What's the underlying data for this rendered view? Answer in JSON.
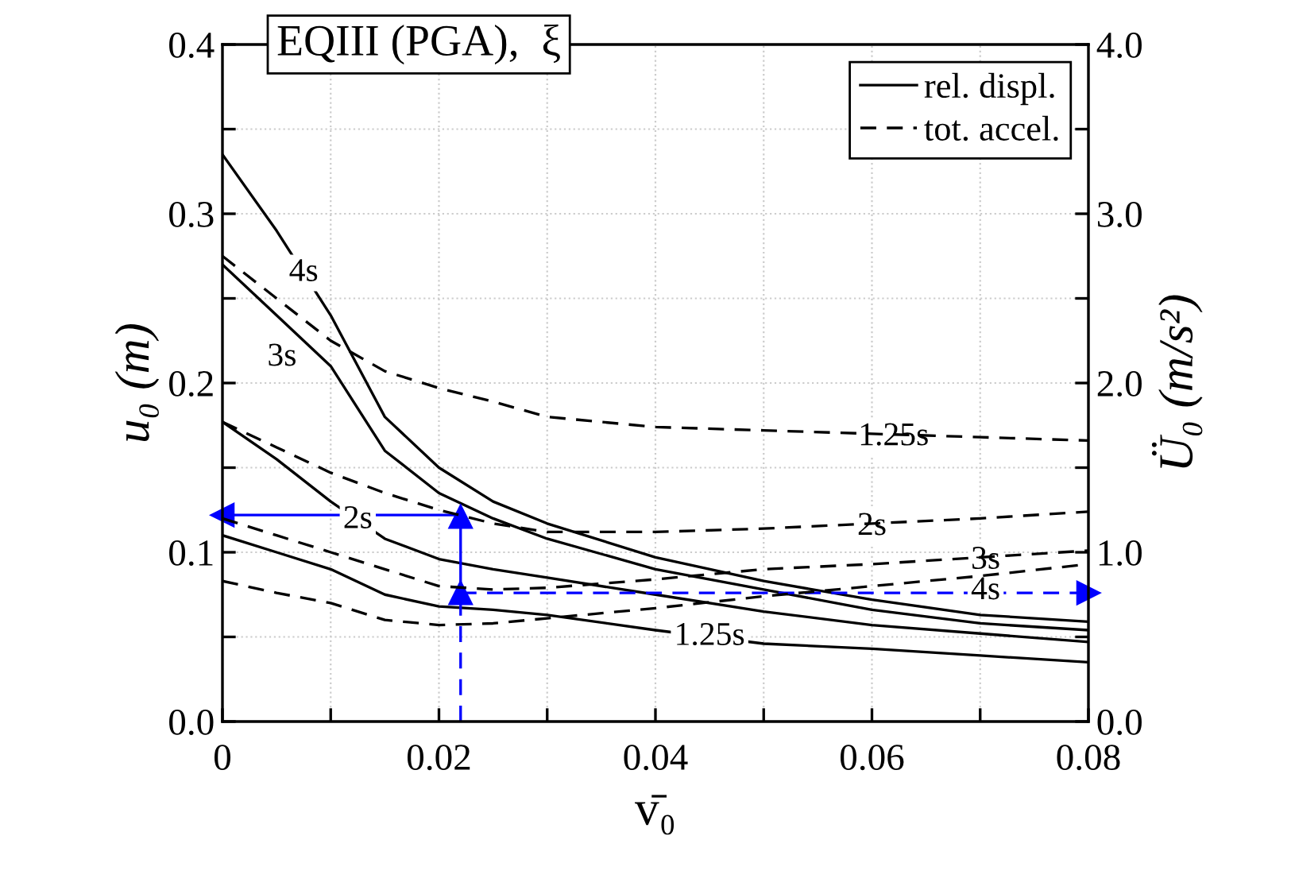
{
  "chart_data": {
    "type": "line",
    "title": "EQIII (PGA),  ξ",
    "xlabel": "v̄₀",
    "ylabel": "u₀ (m)",
    "y2label": "Ü₀ (m/s²)",
    "xlim": [
      0,
      0.08
    ],
    "ylim": [
      0,
      0.4
    ],
    "y2lim": [
      0,
      4.0
    ],
    "xticks": [
      {
        "value": 0,
        "label": "0"
      },
      {
        "value": 0.01,
        "label": null
      },
      {
        "value": 0.02,
        "label": "0.02"
      },
      {
        "value": 0.03,
        "label": null
      },
      {
        "value": 0.04,
        "label": "0.04"
      },
      {
        "value": 0.05,
        "label": null
      },
      {
        "value": 0.06,
        "label": "0.06"
      },
      {
        "value": 0.07,
        "label": null
      },
      {
        "value": 0.08,
        "label": "0.08"
      }
    ],
    "yticks": [
      {
        "value": 0,
        "label": "0.0"
      },
      {
        "value": 0.05,
        "label": null
      },
      {
        "value": 0.1,
        "label": "0.1"
      },
      {
        "value": 0.15,
        "label": null
      },
      {
        "value": 0.2,
        "label": "0.2"
      },
      {
        "value": 0.25,
        "label": null
      },
      {
        "value": 0.3,
        "label": "0.3"
      },
      {
        "value": 0.35,
        "label": null
      },
      {
        "value": 0.4,
        "label": "0.4"
      }
    ],
    "y2ticks": [
      {
        "value": 0,
        "label": "0.0"
      },
      {
        "value": 0.5,
        "label": null
      },
      {
        "value": 1.0,
        "label": "1.0"
      },
      {
        "value": 1.5,
        "label": null
      },
      {
        "value": 2.0,
        "label": "2.0"
      },
      {
        "value": 2.5,
        "label": null
      },
      {
        "value": 3.0,
        "label": "3.0"
      },
      {
        "value": 3.5,
        "label": null
      },
      {
        "value": 4.0,
        "label": "4.0"
      }
    ],
    "grid": true,
    "marker": "none",
    "x": [
      0,
      0.005,
      0.01,
      0.015,
      0.02,
      0.025,
      0.03,
      0.04,
      0.05,
      0.06,
      0.07,
      0.08
    ],
    "series": [
      {
        "color": "#000000",
        "line_style": "solid",
        "axis": "y",
        "values": [
          0.335,
          0.29,
          0.24,
          0.18,
          0.15,
          0.13,
          0.117,
          0.097,
          0.083,
          0.072,
          0.063,
          0.059
        ]
      },
      {
        "color": "#000000",
        "line_style": "solid",
        "axis": "y",
        "values": [
          0.27,
          0.24,
          0.21,
          0.16,
          0.135,
          0.12,
          0.108,
          0.09,
          0.078,
          0.066,
          0.058,
          0.054
        ]
      },
      {
        "color": "#000000",
        "line_style": "solid",
        "axis": "y",
        "values": [
          0.177,
          0.155,
          0.13,
          0.108,
          0.096,
          0.09,
          0.085,
          0.075,
          0.065,
          0.057,
          0.052,
          0.047
        ]
      },
      {
        "color": "#000000",
        "line_style": "solid",
        "axis": "y",
        "values": [
          0.11,
          0.1,
          0.09,
          0.075,
          0.068,
          0.066,
          0.063,
          0.054,
          0.046,
          0.043,
          0.039,
          0.035
        ]
      },
      {
        "color": "#000000",
        "line_style": "dashed",
        "axis": "y2",
        "values": [
          2.75,
          2.5,
          2.25,
          2.07,
          1.97,
          1.89,
          1.8,
          1.74,
          1.72,
          1.7,
          1.68,
          1.66
        ]
      },
      {
        "color": "#000000",
        "line_style": "dashed",
        "axis": "y2",
        "values": [
          1.77,
          1.62,
          1.47,
          1.35,
          1.25,
          1.17,
          1.12,
          1.12,
          1.14,
          1.17,
          1.2,
          1.24
        ]
      },
      {
        "color": "#000000",
        "line_style": "dashed",
        "axis": "y2",
        "values": [
          1.2,
          1.1,
          1.0,
          0.9,
          0.8,
          0.78,
          0.79,
          0.84,
          0.9,
          0.93,
          0.97,
          1.01
        ]
      },
      {
        "color": "#000000",
        "line_style": "dashed",
        "axis": "y2",
        "values": [
          0.83,
          0.76,
          0.7,
          0.6,
          0.57,
          0.58,
          0.61,
          0.67,
          0.74,
          0.8,
          0.86,
          0.93
        ]
      },
      {
        "color": "#0000ff",
        "line_style": "dashed",
        "axis": "y",
        "marker": "triangle",
        "x": [
          0.022,
          0.022
        ],
        "values": [
          0,
          0.076
        ]
      },
      {
        "color": "#0000ff",
        "line_style": "solid",
        "axis": "y",
        "marker": "triangle",
        "x": [
          0.022,
          0.022
        ],
        "values": [
          0.076,
          0.121
        ]
      },
      {
        "color": "#0000ff",
        "line_style": "solid",
        "axis": "y",
        "marker": "triangle",
        "x": [
          0.022,
          0
        ],
        "values": [
          0.122,
          0.122
        ]
      },
      {
        "color": "#0000ff",
        "line_style": "dashed",
        "axis": "y",
        "marker": "triangle",
        "x": [
          0.022,
          0.08
        ],
        "values": [
          0.076,
          0.076
        ]
      }
    ],
    "annotations": [
      "rel. displ.",
      "tot. accel.",
      {
        "text": "4s",
        "x": 0.0075,
        "y": 0.265
      },
      {
        "text": "3s",
        "x": 0.0055,
        "y": 0.215
      },
      {
        "text": "2s",
        "x": 0.0125,
        "y": 0.119
      },
      {
        "text": "1.25s",
        "x": 0.045,
        "y": 0.05
      },
      {
        "text": "1.25s",
        "x": 0.062,
        "y": 0.168
      },
      {
        "text": "2s",
        "x": 0.06,
        "y": 0.115
      },
      {
        "text": "3s",
        "x": 0.0705,
        "y": 0.095
      },
      {
        "text": "4s",
        "x": 0.0705,
        "y": 0.077
      }
    ]
  }
}
